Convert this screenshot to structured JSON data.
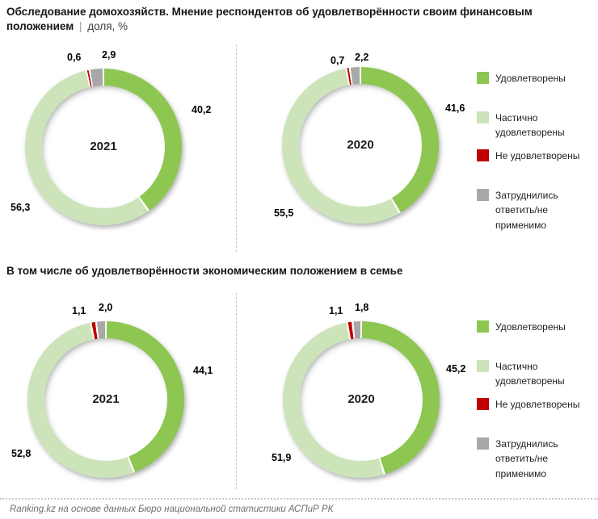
{
  "header": {
    "title_bold": "Обследование домохозяйств. Мнение респондентов об удовлетворённости своим финансовым положением",
    "title_sep": "|",
    "title_unit": "доля, %"
  },
  "section2_title": "В том числе об удовлетворённости экономическим положением в семье",
  "legend": {
    "items": [
      "Удовлетворены",
      "Частично удовлетворены",
      "Не удовлетворены",
      "Затруднились ответить/не применимо"
    ]
  },
  "colors": {
    "satisfied": "#8DC751",
    "partially_satisfied": "#CDE4BA",
    "not_satisfied": "#C00000",
    "undecided": "#A8A8A8",
    "divider": "#c9c9c9"
  },
  "chart_data": [
    {
      "type": "pie",
      "center_label": "2021",
      "group": "Мнение респондентов об удовлетворённости своим финансовым положением",
      "categories": [
        "Удовлетворены",
        "Частично удовлетворены",
        "Не удовлетворены",
        "Затруднились ответить/не применимо"
      ],
      "values": [
        40.2,
        56.3,
        0.6,
        2.9
      ],
      "values_display": [
        "40,2",
        "56,3",
        "0,6",
        "2,9"
      ],
      "colors": [
        "#8DC751",
        "#CDE4BA",
        "#C00000",
        "#A8A8A8"
      ],
      "unit": "%"
    },
    {
      "type": "pie",
      "center_label": "2020",
      "group": "Мнение респондентов об удовлетворённости своим финансовым положением",
      "categories": [
        "Удовлетворены",
        "Частично удовлетворены",
        "Не удовлетворены",
        "Затруднились ответить/не применимо"
      ],
      "values": [
        41.6,
        55.5,
        0.7,
        2.2
      ],
      "values_display": [
        "41,6",
        "55,5",
        "0,7",
        "2,2"
      ],
      "colors": [
        "#8DC751",
        "#CDE4BA",
        "#C00000",
        "#A8A8A8"
      ],
      "unit": "%"
    },
    {
      "type": "pie",
      "center_label": "2021",
      "group": "В том числе об удовлетворённости экономическим положением в семье",
      "categories": [
        "Удовлетворены",
        "Частично удовлетворены",
        "Не удовлетворены",
        "Затруднились ответить/не применимо"
      ],
      "values": [
        44.1,
        52.8,
        1.1,
        2.0
      ],
      "values_display": [
        "44,1",
        "52,8",
        "1,1",
        "2,0"
      ],
      "colors": [
        "#8DC751",
        "#CDE4BA",
        "#C00000",
        "#A8A8A8"
      ],
      "unit": "%"
    },
    {
      "type": "pie",
      "center_label": "2020",
      "group": "В том числе об удовлетворённости экономическим положением в семье",
      "categories": [
        "Удовлетворены",
        "Частично удовлетворены",
        "Не удовлетворены",
        "Затруднились ответить/не применимо"
      ],
      "values": [
        45.2,
        51.9,
        1.1,
        1.8
      ],
      "values_display": [
        "45,2",
        "51,9",
        "1,1",
        "1,8"
      ],
      "colors": [
        "#8DC751",
        "#CDE4BA",
        "#C00000",
        "#A8A8A8"
      ],
      "unit": "%"
    }
  ],
  "footer": {
    "text": "Ranking.kz на основе данных Бюро национальной статистики АСПиР РК"
  }
}
